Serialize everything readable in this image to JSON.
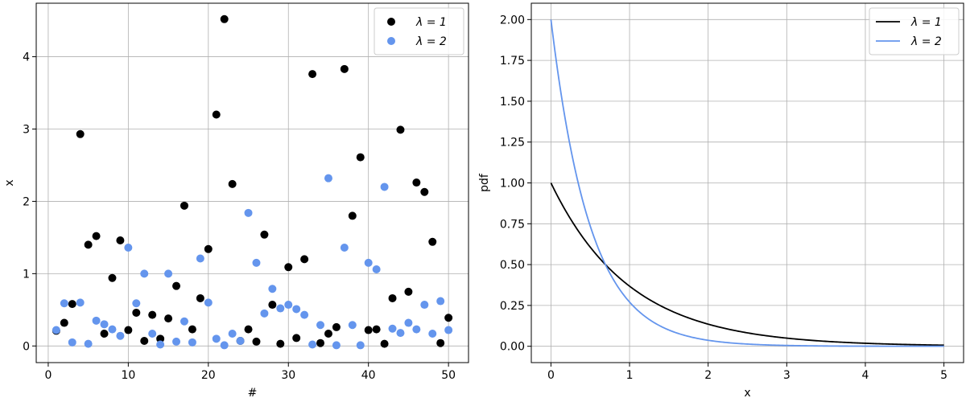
{
  "chart_data": [
    {
      "type": "scatter",
      "xlabel": "#",
      "ylabel": "x",
      "xlim": [
        -1.5,
        52.5
      ],
      "ylim": [
        -0.23,
        4.74
      ],
      "xticks": [
        "0",
        "10",
        "20",
        "30",
        "40",
        "50"
      ],
      "yticks": [
        "0",
        "1",
        "2",
        "3",
        "4"
      ],
      "grid": true,
      "legend": "top-right",
      "series": [
        {
          "name": "λ = 1",
          "color": "#000000",
          "x": [
            1,
            2,
            3,
            4,
            5,
            6,
            7,
            8,
            9,
            10,
            11,
            12,
            13,
            14,
            15,
            16,
            17,
            18,
            19,
            20,
            21,
            22,
            23,
            24,
            25,
            26,
            27,
            28,
            29,
            30,
            31,
            32,
            33,
            34,
            35,
            36,
            37,
            38,
            39,
            40,
            41,
            42,
            43,
            44,
            45,
            46,
            47,
            48,
            49,
            50
          ],
          "y": [
            0.21,
            0.32,
            0.58,
            2.93,
            1.4,
            1.52,
            0.17,
            0.94,
            1.46,
            0.22,
            0.46,
            0.07,
            0.43,
            0.1,
            0.38,
            0.83,
            1.94,
            0.23,
            0.66,
            1.34,
            3.2,
            4.52,
            2.24,
            0.07,
            0.23,
            0.06,
            1.54,
            0.57,
            0.03,
            1.09,
            0.11,
            1.2,
            3.76,
            0.04,
            0.17,
            0.26,
            3.83,
            1.8,
            2.61,
            0.22,
            0.23,
            0.03,
            0.66,
            2.99,
            0.75,
            2.26,
            2.13,
            1.44,
            0.04,
            0.39
          ]
        },
        {
          "name": "λ = 2",
          "color": "#6495ed",
          "x": [
            1,
            2,
            3,
            4,
            5,
            6,
            7,
            8,
            9,
            10,
            11,
            12,
            13,
            14,
            15,
            16,
            17,
            18,
            19,
            20,
            21,
            22,
            23,
            24,
            25,
            26,
            27,
            28,
            29,
            30,
            31,
            32,
            33,
            34,
            35,
            36,
            37,
            38,
            39,
            40,
            41,
            42,
            43,
            44,
            45,
            46,
            47,
            48,
            49,
            50
          ],
          "y": [
            0.22,
            0.59,
            0.05,
            0.6,
            0.03,
            0.35,
            0.3,
            0.23,
            0.14,
            1.36,
            0.59,
            1.0,
            0.17,
            0.02,
            1.0,
            0.06,
            0.34,
            0.05,
            1.21,
            0.6,
            0.1,
            0.01,
            0.17,
            0.07,
            1.84,
            1.15,
            0.45,
            0.79,
            0.52,
            0.57,
            0.51,
            0.43,
            0.02,
            0.29,
            2.32,
            0.01,
            1.36,
            0.29,
            0.01,
            1.15,
            1.06,
            2.2,
            0.24,
            0.18,
            0.32,
            0.23,
            0.57,
            0.17,
            0.62,
            0.22
          ]
        }
      ]
    },
    {
      "type": "line",
      "xlabel": "x",
      "ylabel": "pdf",
      "xlim": [
        -0.25,
        5.25
      ],
      "ylim": [
        -0.1,
        2.1
      ],
      "xticks": [
        "0",
        "1",
        "2",
        "3",
        "4",
        "5"
      ],
      "yticks": [
        "0.00",
        "0.25",
        "0.50",
        "0.75",
        "1.00",
        "1.25",
        "1.50",
        "1.75",
        "2.00"
      ],
      "grid": true,
      "legend": "top-right",
      "x_range": [
        0,
        5
      ],
      "series": [
        {
          "name": "λ = 1",
          "color": "#000000",
          "lambda": 1
        },
        {
          "name": "λ = 2",
          "color": "#6495ed",
          "lambda": 2
        }
      ]
    }
  ]
}
